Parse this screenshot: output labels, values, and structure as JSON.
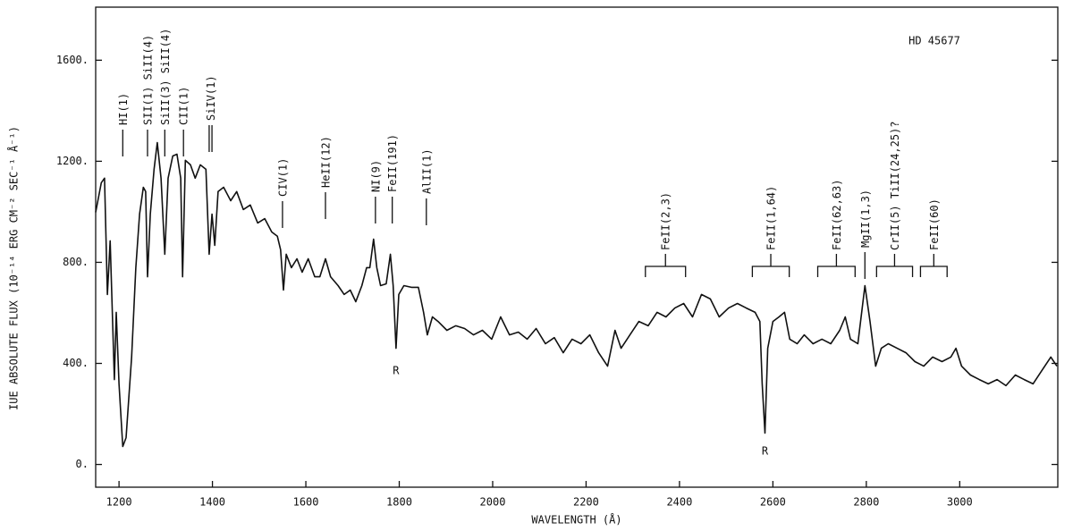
{
  "chart_data": {
    "type": "line",
    "title": "HD 45677",
    "x_label": "WAVELENGTH (Å)",
    "y_label": "IUE ABSOLUTE FLUX (10⁻¹⁴ ERG CM⁻² SEC⁻¹ Å⁻¹)",
    "color": "#111111",
    "xlim": [
      1150,
      3210
    ],
    "ylim": [
      -90,
      1810
    ],
    "xticks": [
      1200,
      1400,
      1600,
      1800,
      2000,
      2200,
      2400,
      2600,
      2800,
      3000
    ],
    "yticks": [
      {
        "value": 0,
        "label": "0."
      },
      {
        "value": 400,
        "label": "400."
      },
      {
        "value": 800,
        "label": "800."
      },
      {
        "value": 1200,
        "label": "1200."
      },
      {
        "value": 1600,
        "label": "1600."
      }
    ],
    "x": [
      1150,
      1162,
      1169,
      1175,
      1181,
      1190,
      1194,
      1200,
      1208,
      1215,
      1227,
      1236,
      1244,
      1252,
      1257,
      1261,
      1267,
      1275,
      1282,
      1290,
      1298,
      1305,
      1315,
      1324,
      1332,
      1336,
      1342,
      1353,
      1363,
      1374,
      1386,
      1393,
      1399,
      1405,
      1412,
      1424,
      1439,
      1452,
      1466,
      1481,
      1497,
      1512,
      1527,
      1539,
      1546,
      1552,
      1558,
      1569,
      1581,
      1592,
      1605,
      1619,
      1630,
      1642,
      1653,
      1669,
      1682,
      1695,
      1707,
      1720,
      1730,
      1737,
      1745,
      1752,
      1760,
      1772,
      1781,
      1787,
      1793,
      1799,
      1810,
      1826,
      1841,
      1852,
      1860,
      1871,
      1883,
      1902,
      1921,
      1940,
      1959,
      1978,
      1998,
      2017,
      2036,
      2055,
      2074,
      2093,
      2113,
      2132,
      2151,
      2170,
      2189,
      2208,
      2227,
      2246,
      2262,
      2275,
      2294,
      2313,
      2333,
      2352,
      2371,
      2390,
      2409,
      2428,
      2447,
      2466,
      2485,
      2505,
      2524,
      2543,
      2562,
      2572,
      2577,
      2583,
      2589,
      2600,
      2613,
      2625,
      2636,
      2652,
      2667,
      2686,
      2705,
      2724,
      2743,
      2755,
      2766,
      2782,
      2797,
      2808,
      2820,
      2832,
      2847,
      2866,
      2885,
      2904,
      2923,
      2942,
      2962,
      2981,
      2992,
      3004,
      3023,
      3042,
      3061,
      3080,
      3099,
      3119,
      3138,
      3157,
      3176,
      3195,
      3208
    ],
    "values": [
      998,
      1115,
      1133,
      673,
      885,
      336,
      602,
      319,
      71,
      106,
      425,
      779,
      991,
      1097,
      1080,
      743,
      991,
      1168,
      1274,
      1133,
      832,
      1133,
      1221,
      1228,
      1133,
      743,
      1204,
      1186,
      1133,
      1186,
      1168,
      832,
      991,
      867,
      1080,
      1097,
      1044,
      1080,
      1009,
      1027,
      956,
      973,
      920,
      903,
      850,
      690,
      832,
      779,
      814,
      761,
      814,
      743,
      743,
      814,
      743,
      708,
      673,
      690,
      644,
      708,
      779,
      779,
      892,
      779,
      708,
      715,
      832,
      708,
      460,
      673,
      708,
      701,
      701,
      602,
      513,
      584,
      566,
      531,
      549,
      538,
      513,
      531,
      496,
      584,
      513,
      524,
      496,
      538,
      478,
      502,
      442,
      496,
      478,
      513,
      442,
      389,
      531,
      460,
      513,
      566,
      549,
      602,
      584,
      619,
      637,
      584,
      673,
      655,
      584,
      619,
      637,
      619,
      602,
      566,
      319,
      124,
      460,
      566,
      584,
      602,
      496,
      478,
      513,
      478,
      496,
      478,
      531,
      584,
      496,
      478,
      708,
      566,
      389,
      460,
      478,
      460,
      442,
      407,
      389,
      425,
      407,
      425,
      460,
      389,
      354,
      336,
      319,
      336,
      312,
      354,
      336,
      319,
      372,
      425,
      389
    ],
    "line_ids": [
      {
        "text": "HI(1)",
        "x": [
          1208
        ]
      },
      {
        "text": "SII(1) SiII(4)",
        "x": [
          1261
        ]
      },
      {
        "text": "SiII(3) SiII(4)",
        "x": [
          1298
        ]
      },
      {
        "text": "CII(1)",
        "x": [
          1338
        ]
      },
      {
        "text": "SiIV(1)",
        "x": [
          1393,
          1399
        ]
      },
      {
        "text": "CIV(1)",
        "x": [
          1550
        ]
      },
      {
        "text": "HeII(12)",
        "x": [
          1642
        ]
      },
      {
        "text": "NI(9)",
        "x": [
          1749
        ]
      },
      {
        "text": "FeII(191)",
        "x": [
          1785
        ]
      },
      {
        "text": "AlII(1)",
        "x": [
          1858
        ]
      },
      {
        "text": "FeII(2,3)",
        "x": [
          2327,
          2413
        ]
      },
      {
        "text": "FeII(1,64)",
        "x": [
          2556,
          2635
        ]
      },
      {
        "text": "FeII(62,63)",
        "x": [
          2696,
          2776
        ]
      },
      {
        "text": "MgII(1,3)",
        "x": [
          2797
        ]
      },
      {
        "text": "CrII(5) TiII(24,25)?",
        "x": [
          2822,
          2899
        ]
      },
      {
        "text": "FeII(60)",
        "x": [
          2916,
          2973
        ]
      }
    ],
    "reseau": [
      {
        "text": "R",
        "x": 1793
      },
      {
        "text": "R",
        "x": 2583
      }
    ]
  }
}
